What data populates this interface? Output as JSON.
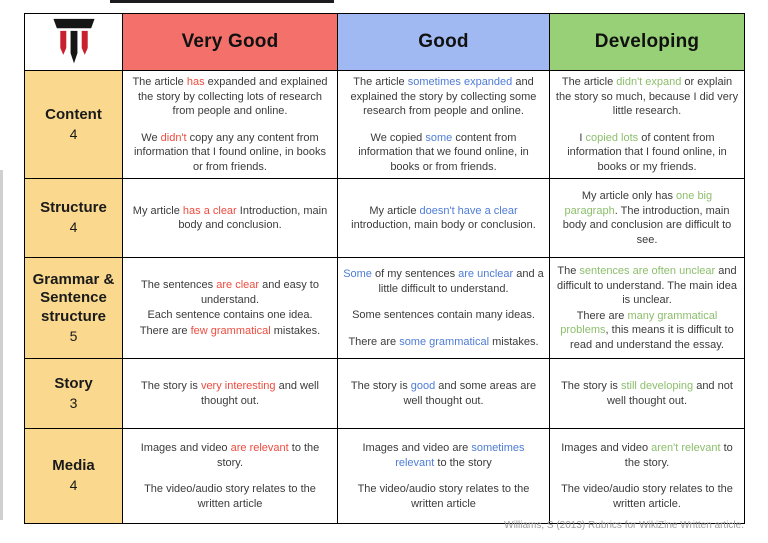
{
  "page": {
    "footer_citation": "Williams, S (2013) Rubrics for WikiZine Written article."
  },
  "colors": {
    "border": "#000000",
    "body_text": "#3B3B3B",
    "row_label_bg": "#FAD98E",
    "footer_text": "#9B9B9B",
    "logo_red": "#C8202F",
    "logo_black": "#161616"
  },
  "table": {
    "columns": [
      {
        "label": "Very Good",
        "color": "#F4716B",
        "accent": "#ED4C3F"
      },
      {
        "label": "Good",
        "color": "#A0B9F2",
        "accent": "#4E7CD6"
      },
      {
        "label": "Developing",
        "color": "#97D077",
        "accent": "#8CBE6C"
      }
    ],
    "rows": [
      {
        "label": "Content",
        "score": "4",
        "cells": [
          {
            "paragraphs": [
              [
                {
                  "t": "The article "
                },
                {
                  "t": "has",
                  "h": true
                },
                {
                  "t": " expanded and explained the story by collecting lots of research from people and online."
                }
              ],
              [
                {
                  "t": "We "
                },
                {
                  "t": "didn't",
                  "h": true
                },
                {
                  "t": " copy any any content from information that I found online, in books or from friends."
                }
              ]
            ]
          },
          {
            "paragraphs": [
              [
                {
                  "t": "The article "
                },
                {
                  "t": "sometimes expanded",
                  "h": true
                },
                {
                  "t": " and explained the story by collecting some research from people and online."
                }
              ],
              [
                {
                  "t": "We copied "
                },
                {
                  "t": "some",
                  "h": true
                },
                {
                  "t": " content from information that we found online, in books or from friends."
                }
              ]
            ]
          },
          {
            "paragraphs": [
              [
                {
                  "t": "The article "
                },
                {
                  "t": "didn't expand",
                  "h": true
                },
                {
                  "t": " or explain the story so much, because I did very little research."
                }
              ],
              [
                {
                  "t": "I "
                },
                {
                  "t": "copied lots",
                  "h": true
                },
                {
                  "t": " of content from information that I found online, in books or my friends."
                }
              ]
            ]
          }
        ]
      },
      {
        "label": "Structure",
        "score": "4",
        "cells": [
          {
            "paragraphs": [
              [
                {
                  "t": "My article "
                },
                {
                  "t": "has a clear",
                  "h": true
                },
                {
                  "t": " Introduction, main body and conclusion."
                }
              ]
            ]
          },
          {
            "paragraphs": [
              [
                {
                  "t": "My article "
                },
                {
                  "t": "doesn't have a clear",
                  "h": true
                },
                {
                  "t": " introduction, main body or conclusion."
                }
              ]
            ]
          },
          {
            "paragraphs": [
              [
                {
                  "t": "My article only has "
                },
                {
                  "t": "one big paragraph",
                  "h": true
                },
                {
                  "t": ". The introduction, main body and conclusion are difficult to see."
                }
              ]
            ]
          }
        ]
      },
      {
        "label": "Grammar & Sentence structure",
        "score": "5",
        "cells": [
          {
            "tight": true,
            "paragraphs": [
              [
                {
                  "t": "The sentences "
                },
                {
                  "t": "are clear",
                  "h": true
                },
                {
                  "t": " and easy to understand."
                }
              ],
              [
                {
                  "t": "Each sentence contains one idea."
                }
              ],
              [
                {
                  "t": "There are "
                },
                {
                  "t": "few grammatical",
                  "h": true
                },
                {
                  "t": " mistakes."
                }
              ]
            ]
          },
          {
            "paragraphs": [
              [
                {
                  "t": "Some",
                  "h": true
                },
                {
                  "t": " of my sentences "
                },
                {
                  "t": "are unclear",
                  "h": true
                },
                {
                  "t": " and a little difficult to understand."
                }
              ],
              [
                {
                  "t": "Some sentences contain many ideas."
                }
              ],
              [
                {
                  "t": "There are "
                },
                {
                  "t": "some grammatical",
                  "h": true
                },
                {
                  "t": " mistakes."
                }
              ]
            ]
          },
          {
            "tight": true,
            "paragraphs": [
              [
                {
                  "t": "The "
                },
                {
                  "t": "sentences are often unclear",
                  "h": true
                },
                {
                  "t": " and difficult to understand. The main idea is unclear."
                }
              ],
              [
                {
                  "t": "There are "
                },
                {
                  "t": "many grammatical problems",
                  "h": true
                },
                {
                  "t": ", this means it is difficult to read and understand the essay."
                }
              ]
            ]
          }
        ]
      },
      {
        "label": "Story",
        "score": "3",
        "cells": [
          {
            "paragraphs": [
              [
                {
                  "t": "The story is "
                },
                {
                  "t": "very interesting",
                  "h": true
                },
                {
                  "t": " and well thought out."
                }
              ]
            ]
          },
          {
            "paragraphs": [
              [
                {
                  "t": "The story is "
                },
                {
                  "t": "good",
                  "h": true
                },
                {
                  "t": " and some areas are well thought out."
                }
              ]
            ]
          },
          {
            "paragraphs": [
              [
                {
                  "t": "The story is "
                },
                {
                  "t": "still developing",
                  "h": true
                },
                {
                  "t": " and not well thought out."
                }
              ]
            ]
          }
        ]
      },
      {
        "label": "Media",
        "score": "4",
        "cells": [
          {
            "paragraphs": [
              [
                {
                  "t": "Images and video "
                },
                {
                  "t": "are relevant",
                  "h": true
                },
                {
                  "t": " to the story."
                }
              ],
              [
                {
                  "t": "The video/audio story relates to the written article"
                }
              ]
            ]
          },
          {
            "paragraphs": [
              [
                {
                  "t": "Images and video are "
                },
                {
                  "t": "sometimes relevant",
                  "h": true
                },
                {
                  "t": " to the story"
                }
              ],
              [
                {
                  "t": "The video/audio story relates to the written article"
                }
              ]
            ]
          },
          {
            "paragraphs": [
              [
                {
                  "t": "Images and video "
                },
                {
                  "t": "aren't relevant",
                  "h": true
                },
                {
                  "t": " to the story."
                }
              ],
              [
                {
                  "t": "The video/audio story relates to the written article."
                }
              ]
            ]
          }
        ]
      }
    ]
  }
}
